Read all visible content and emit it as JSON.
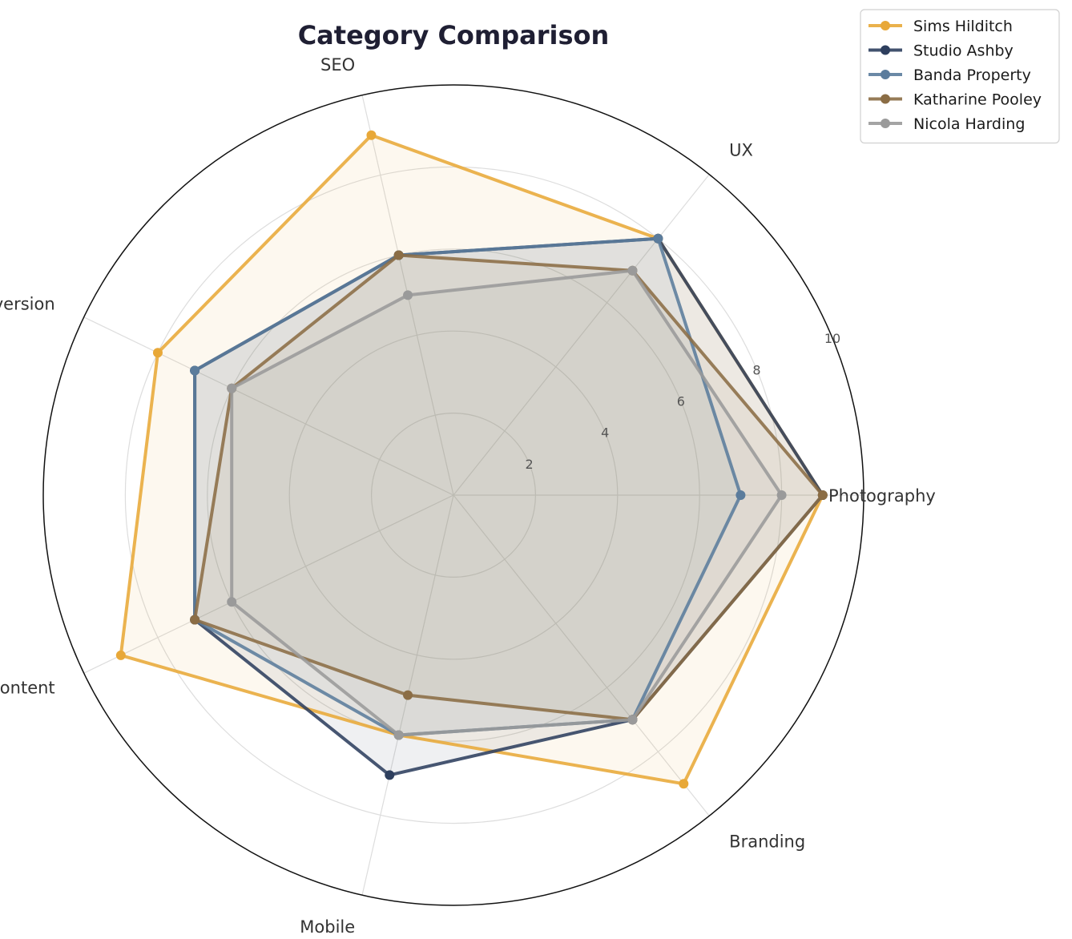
{
  "chart_data": {
    "type": "radar",
    "title": "Category Comparison",
    "axes": [
      "Photography",
      "UX",
      "SEO",
      "Conversion",
      "Content",
      "Mobile",
      "Branding"
    ],
    "rlim": [
      0,
      10
    ],
    "rticks": [
      2,
      4,
      6,
      8,
      10
    ],
    "grid": true,
    "legend_position": "top-right",
    "series": [
      {
        "name": "Sims Hilditch",
        "color": "#e8a838",
        "values": [
          9,
          8,
          9,
          8,
          9,
          6,
          9
        ]
      },
      {
        "name": "Studio Ashby",
        "color": "#2e3f5e",
        "values": [
          9,
          8,
          6,
          7,
          7,
          7,
          7
        ]
      },
      {
        "name": "Banda Property",
        "color": "#5b7c9c",
        "values": [
          7,
          8,
          6,
          7,
          7,
          6,
          7
        ]
      },
      {
        "name": "Katharine Pooley",
        "color": "#8b6d45",
        "values": [
          9,
          7,
          6,
          6,
          7,
          5,
          7
        ]
      },
      {
        "name": "Nicola Harding",
        "color": "#9a9a9a",
        "values": [
          8,
          7,
          5,
          6,
          6,
          6,
          7
        ]
      }
    ]
  }
}
